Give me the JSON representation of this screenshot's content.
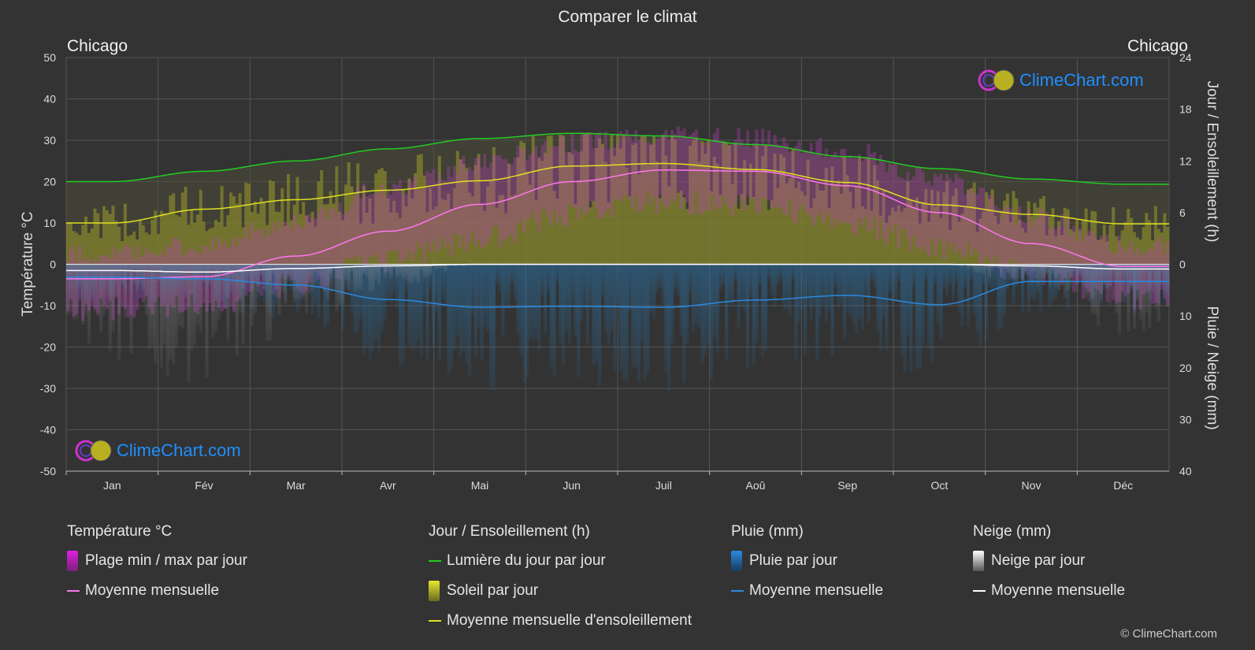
{
  "title": "Comparer le climat",
  "city_left": "Chicago",
  "city_right": "Chicago",
  "axes": {
    "left_title": "Température °C",
    "right_top_title": "Jour / Ensoleillement (h)",
    "right_bottom_title": "Pluie / Neige (mm)"
  },
  "logo_text": "ClimeChart.com",
  "copyright": "© ClimeChart.com",
  "legend": {
    "temperature": {
      "header": "Température °C",
      "range": "Plage min / max par jour",
      "mean": "Moyenne mensuelle"
    },
    "sun": {
      "header": "Jour / Ensoleillement (h)",
      "daylight": "Lumière du jour par jour",
      "sunshine": "Soleil par jour",
      "mean": "Moyenne mensuelle d'ensoleillement"
    },
    "rain": {
      "header": "Pluie (mm)",
      "daily": "Pluie par jour",
      "mean": "Moyenne mensuelle"
    },
    "snow": {
      "header": "Neige (mm)",
      "daily": "Neige par jour",
      "mean": "Moyenne mensuelle"
    }
  },
  "colors": {
    "background": "#333333",
    "daylight": "#22cc22",
    "sunshine_mean": "#e0e020",
    "temp_mean": "#ff77ee",
    "temp_range": "#cc33cc",
    "rain": "#2a8ae0",
    "snow": "#ffffff",
    "logo_text": "#1e90ff"
  },
  "chart_data": {
    "type": "line",
    "categories": [
      "Jan",
      "Fév",
      "Mar",
      "Avr",
      "Mai",
      "Jun",
      "Juil",
      "Aoû",
      "Sep",
      "Oct",
      "Nov",
      "Déc"
    ],
    "left_axis": {
      "ticks": [
        50,
        40,
        30,
        20,
        10,
        0,
        -10,
        -20,
        -30,
        -40,
        -50
      ],
      "ylim": [
        -50,
        50
      ],
      "label": "Température °C"
    },
    "right_axis_top": {
      "ticks": [
        24,
        18,
        12,
        6,
        0
      ],
      "range_hours": [
        0,
        24
      ],
      "label": "Jour / Ensoleillement (h)"
    },
    "right_axis_bottom": {
      "ticks": [
        0,
        10,
        20,
        30,
        40
      ],
      "range_mm": [
        0,
        40
      ],
      "label": "Pluie / Neige (mm)"
    },
    "series": [
      {
        "name": "Lumière du jour par jour",
        "axis": "hours",
        "values": [
          9.6,
          10.8,
          12.0,
          13.4,
          14.6,
          15.2,
          14.9,
          13.9,
          12.5,
          11.1,
          9.9,
          9.3
        ]
      },
      {
        "name": "Moyenne mensuelle d'ensoleillement",
        "axis": "hours",
        "values": [
          4.8,
          6.4,
          7.5,
          8.6,
          9.7,
          11.4,
          11.7,
          11.0,
          9.5,
          6.9,
          5.8,
          4.7
        ]
      },
      {
        "name": "Soleil par jour",
        "axis": "hours",
        "values": [
          4.8,
          6.4,
          7.5,
          8.6,
          9.7,
          11.4,
          11.7,
          11.0,
          9.5,
          6.9,
          5.8,
          4.7
        ]
      },
      {
        "name": "Température moyenne mensuelle",
        "axis": "temperature",
        "values": [
          -3.5,
          -3.0,
          2.0,
          8.0,
          14.5,
          20.0,
          22.8,
          22.5,
          19.0,
          12.5,
          5.0,
          -0.5
        ]
      },
      {
        "name": "Plage min max par jour",
        "axis": "temperature",
        "min": [
          -8,
          -7,
          -2,
          4,
          9,
          15,
          18,
          17,
          13,
          7,
          1,
          -5
        ],
        "max": [
          0,
          2,
          8,
          16,
          22,
          27,
          29,
          28,
          25,
          18,
          9,
          2
        ]
      },
      {
        "name": "Pluie moyenne mensuelle",
        "axis": "mm",
        "values": [
          2.5,
          2.8,
          4.0,
          6.8,
          8.3,
          8.1,
          8.3,
          6.9,
          6.0,
          7.8,
          3.3,
          3.3
        ]
      },
      {
        "name": "Neige moyenne mensuelle",
        "axis": "mm",
        "values": [
          1.2,
          1.5,
          0.8,
          0.3,
          0.0,
          0.0,
          0.0,
          0.0,
          0.0,
          0.0,
          0.3,
          0.9
        ]
      }
    ],
    "grid": true
  }
}
